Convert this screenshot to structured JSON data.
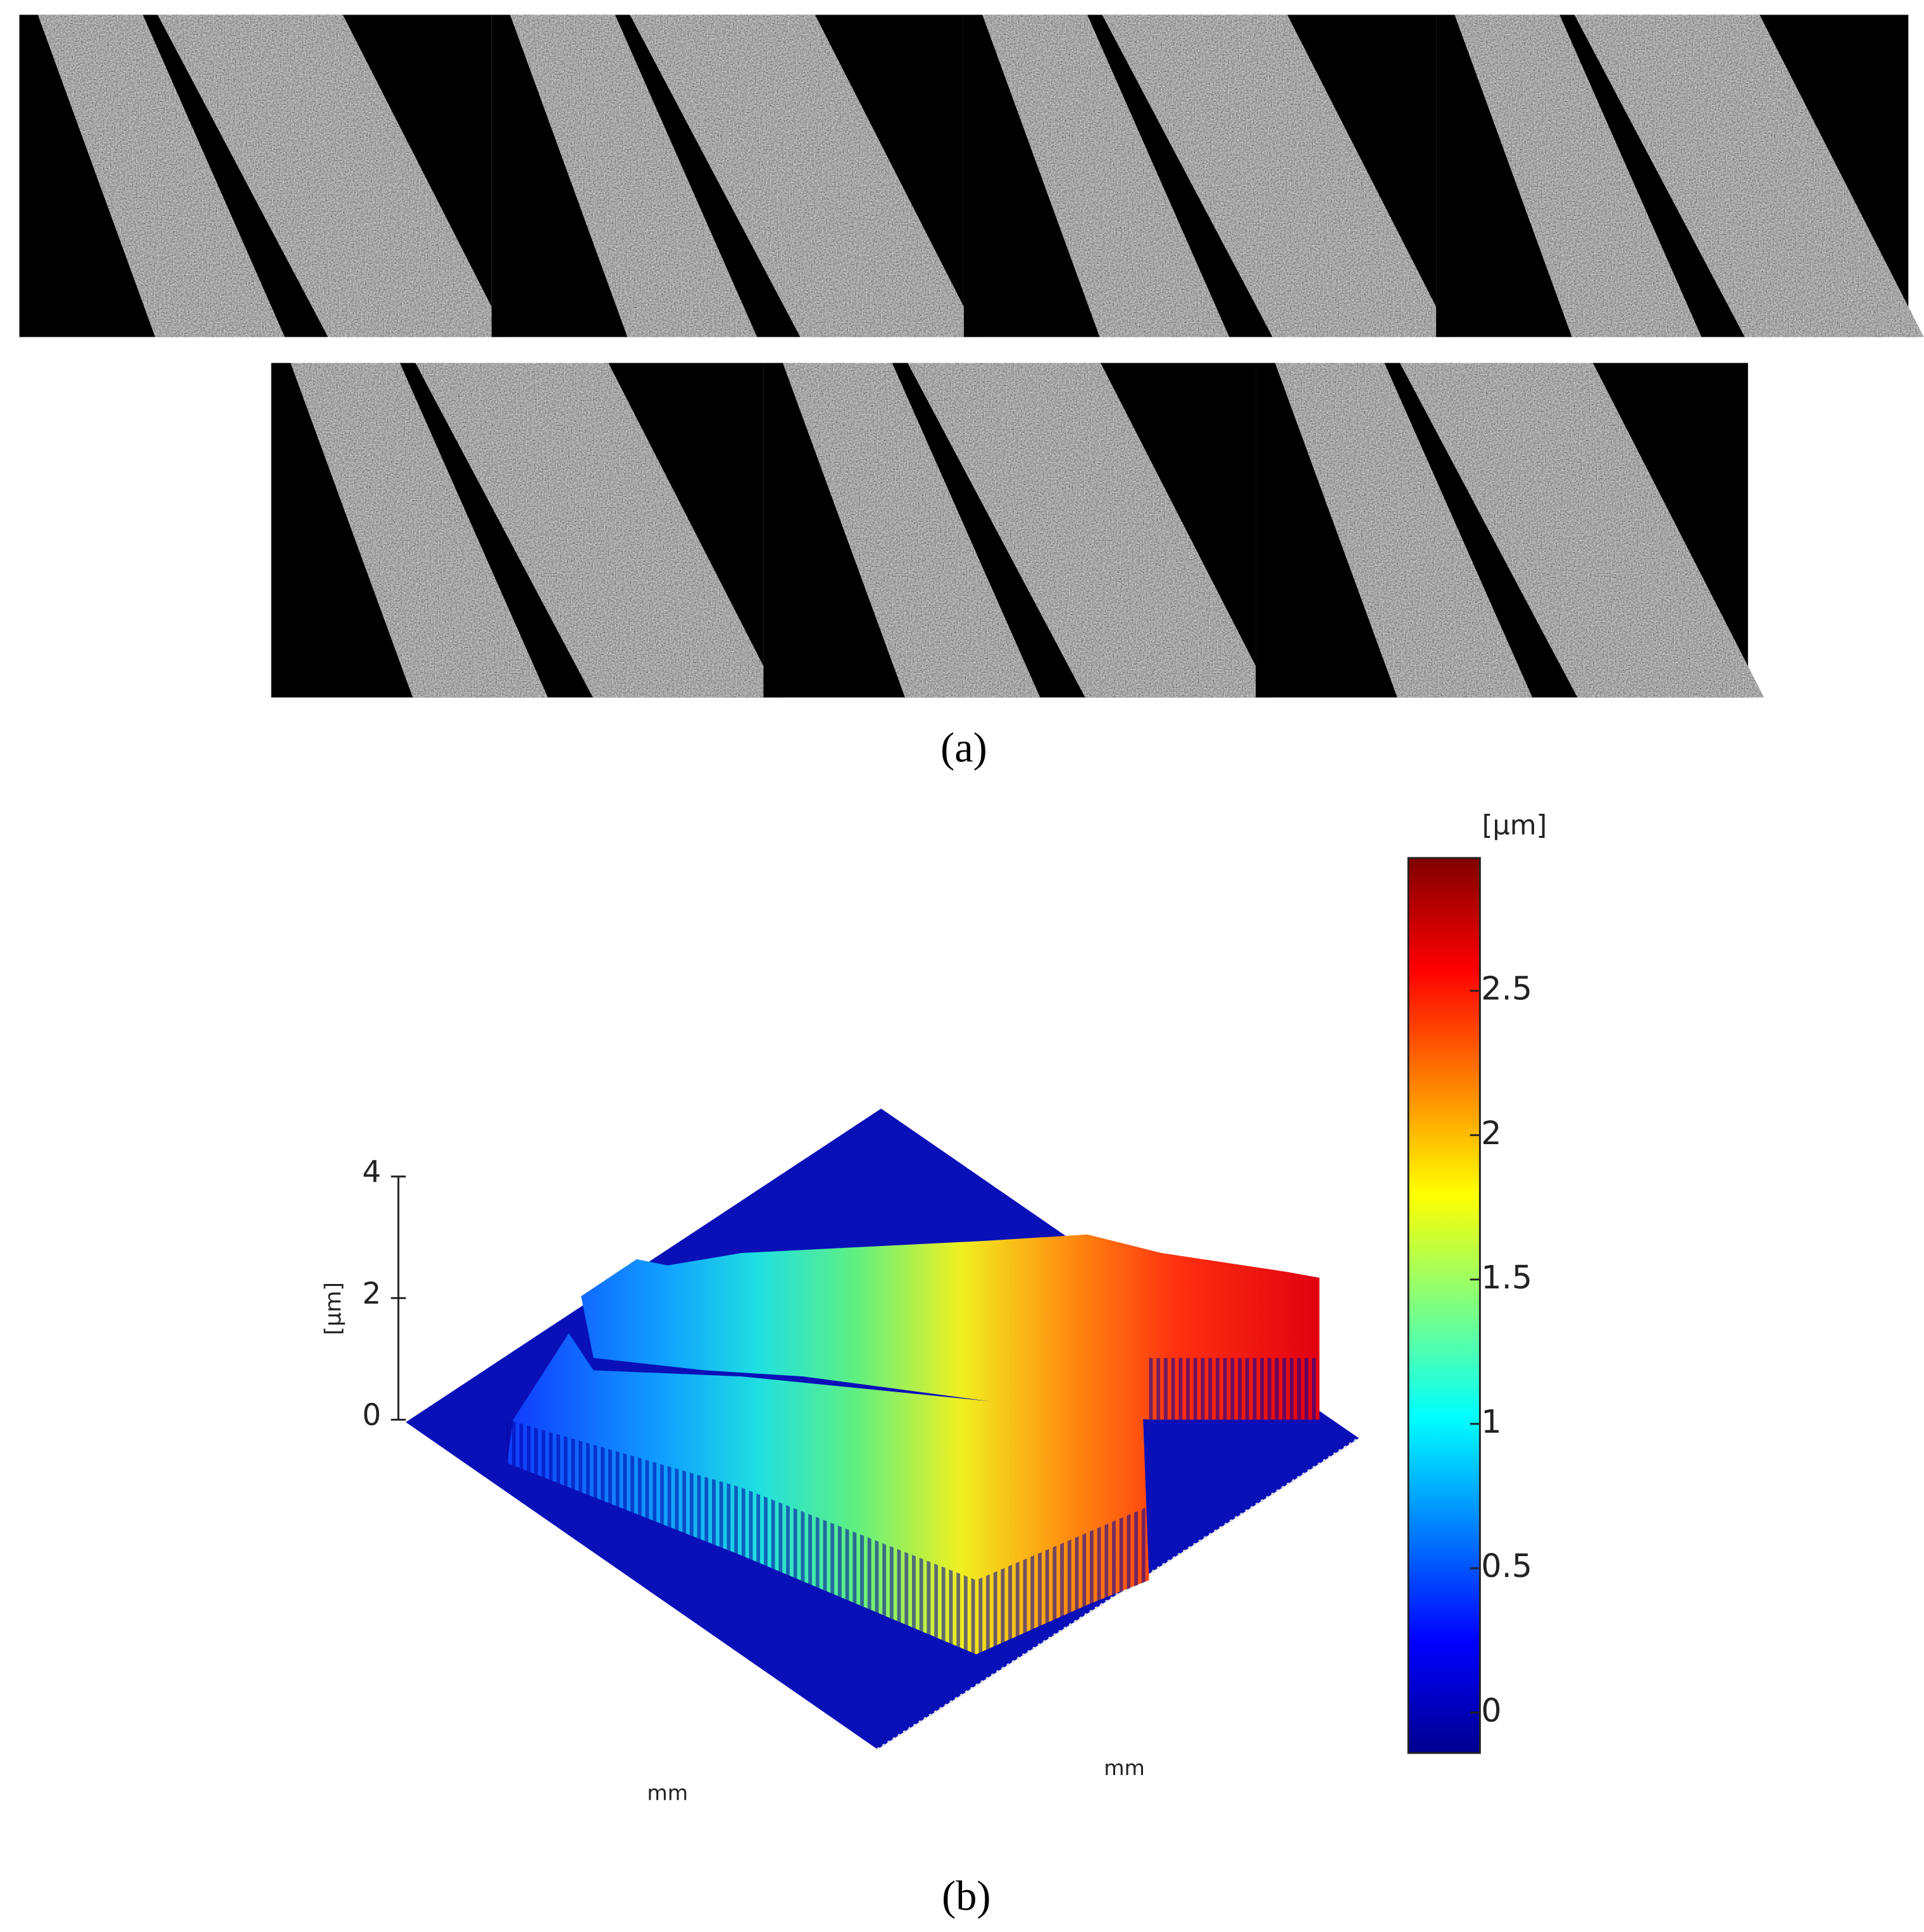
{
  "panel_a": {
    "label": "(a)"
  },
  "panel_b": {
    "label": "(b)",
    "z_axis": {
      "label": "[μm]",
      "lim": [
        0,
        4
      ],
      "ticks": [
        0,
        2,
        4
      ]
    },
    "x_axis_label": "mm",
    "y_axis_label": "mm",
    "colorbar": {
      "label": "[μm]",
      "lim": [
        -0.14,
        2.96
      ],
      "ticks": [
        0,
        0.5,
        1,
        1.5,
        2,
        2.5
      ]
    }
  }
}
